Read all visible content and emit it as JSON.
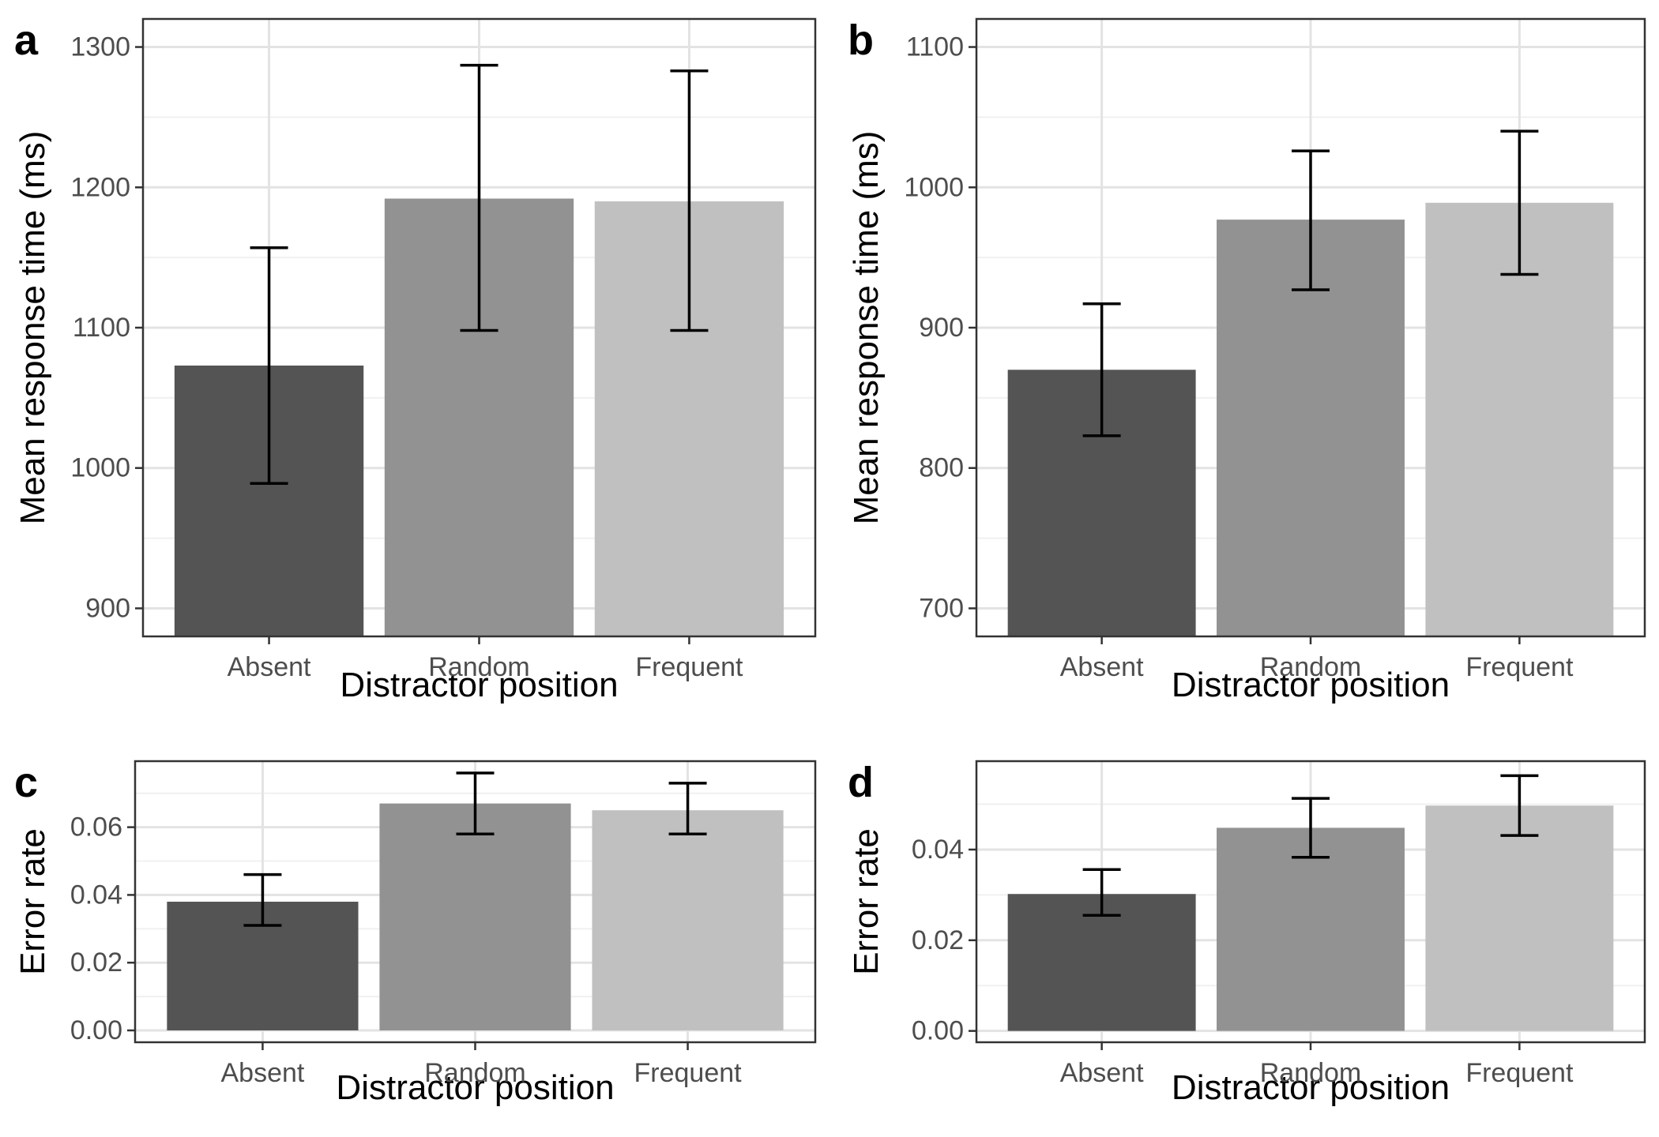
{
  "chart_data": [
    {
      "panel": "a",
      "type": "bar",
      "categories": [
        "Absent",
        "Random",
        "Frequent"
      ],
      "values": [
        1073,
        1192,
        1190
      ],
      "error_low": [
        989,
        1098,
        1098
      ],
      "error_high": [
        1157,
        1287,
        1283
      ],
      "colors": [
        "#545454",
        "#929292",
        "#c0c0c0"
      ],
      "xlabel": "Distractor position",
      "ylabel": "Mean response time (ms)",
      "ylim": [
        880,
        1320
      ],
      "yticks": [
        900,
        1000,
        1100,
        1200,
        1300
      ],
      "yticklabels": [
        "900",
        "1000",
        "1100",
        "1200",
        "1300"
      ],
      "grid": true
    },
    {
      "panel": "b",
      "type": "bar",
      "categories": [
        "Absent",
        "Random",
        "Frequent"
      ],
      "values": [
        870,
        977,
        989
      ],
      "error_low": [
        823,
        927,
        938
      ],
      "error_high": [
        917,
        1026,
        1040
      ],
      "colors": [
        "#545454",
        "#929292",
        "#c0c0c0"
      ],
      "xlabel": "Distractor position",
      "ylabel": "Mean response time (ms)",
      "ylim": [
        680,
        1120
      ],
      "yticks": [
        700,
        800,
        900,
        1000,
        1100
      ],
      "yticklabels": [
        "700",
        "800",
        "900",
        "1000",
        "1100"
      ],
      "grid": true
    },
    {
      "panel": "c",
      "type": "bar",
      "categories": [
        "Absent",
        "Random",
        "Frequent"
      ],
      "values": [
        0.038,
        0.067,
        0.065
      ],
      "error_low": [
        0.031,
        0.058,
        0.058
      ],
      "error_high": [
        0.046,
        0.076,
        0.073
      ],
      "colors": [
        "#545454",
        "#929292",
        "#c0c0c0"
      ],
      "xlabel": "Distractor position",
      "ylabel": "Error rate",
      "ylim": [
        -0.0035,
        0.0795
      ],
      "yticks": [
        0,
        0.02,
        0.04,
        0.06
      ],
      "yticklabels": [
        "0.00",
        "0.02",
        "0.04",
        "0.06"
      ],
      "grid": true
    },
    {
      "panel": "d",
      "type": "bar",
      "categories": [
        "Absent",
        "Random",
        "Frequent"
      ],
      "values": [
        0.0302,
        0.0448,
        0.0497
      ],
      "error_low": [
        0.0255,
        0.0383,
        0.0431
      ],
      "error_high": [
        0.0356,
        0.0513,
        0.0563
      ],
      "colors": [
        "#545454",
        "#929292",
        "#c0c0c0"
      ],
      "xlabel": "Distractor position",
      "ylabel": "Error rate",
      "ylim": [
        -0.0025,
        0.0595
      ],
      "yticks": [
        0,
        0.02,
        0.04
      ],
      "yticklabels": [
        "0.00",
        "0.02",
        "0.04"
      ],
      "grid": true
    }
  ]
}
